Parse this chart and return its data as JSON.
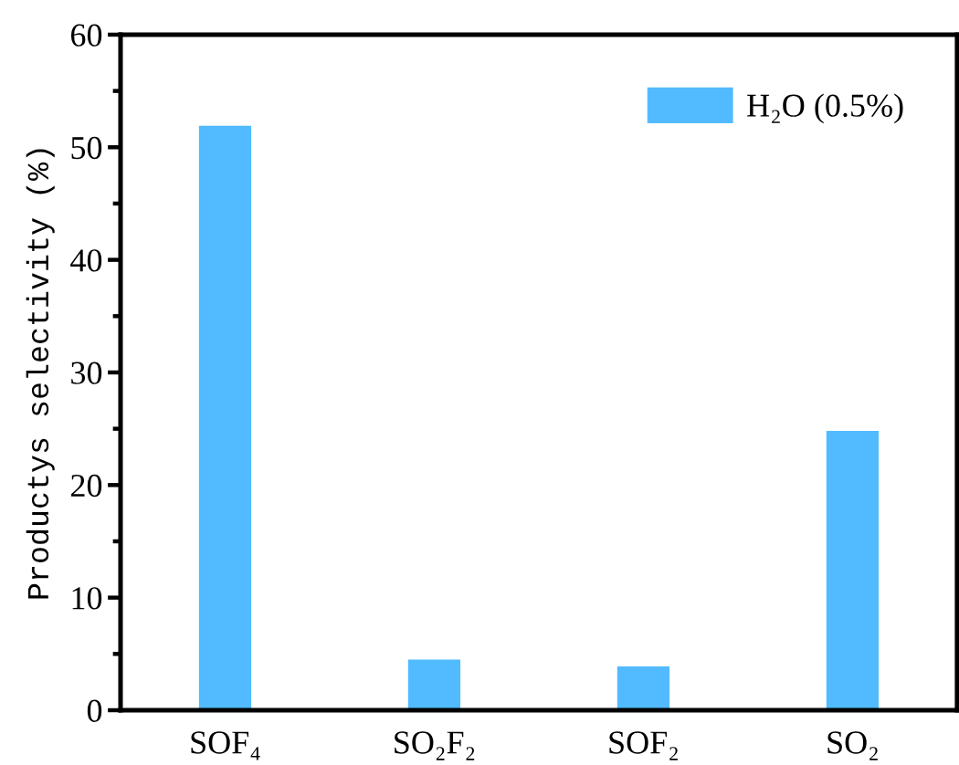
{
  "chart_data": {
    "type": "bar",
    "categories": [
      "SOF₄",
      "SO₂F₂",
      "SOF₂",
      "SO₂"
    ],
    "series": [
      {
        "name": "H₂O (0.5%)",
        "color": "#52bbff",
        "values": [
          51.9,
          4.5,
          3.9,
          24.8
        ]
      }
    ],
    "ylabel": "Productys selectivity (%)",
    "ylim": [
      0,
      60
    ],
    "yticks": [
      0,
      10,
      20,
      30,
      40,
      50,
      60
    ],
    "grid": false,
    "legend": "top right"
  }
}
